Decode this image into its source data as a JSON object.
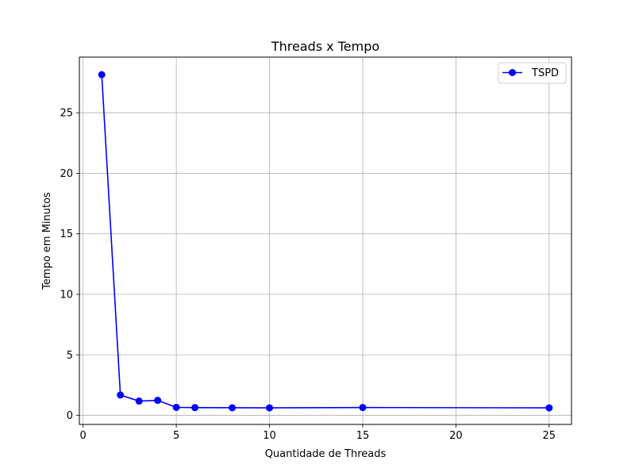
{
  "chart_data": {
    "type": "line",
    "title": "Threads x Tempo",
    "xlabel": "Quantidade de Threads",
    "ylabel": "Tempo em Minutos",
    "xlim": [
      -0.2,
      26.2
    ],
    "ylim": [
      -0.75,
      29.6
    ],
    "xticks": [
      0,
      5,
      10,
      15,
      20,
      25
    ],
    "yticks": [
      0,
      5,
      10,
      15,
      20,
      25
    ],
    "grid": true,
    "legend_position": "top-right",
    "series": [
      {
        "name": "TSPD",
        "color": "#0000ff",
        "marker": "circle",
        "x": [
          1,
          2,
          3,
          4,
          5,
          6,
          8,
          10,
          15,
          25
        ],
        "y": [
          28.15,
          1.68,
          1.18,
          1.24,
          0.66,
          0.64,
          0.63,
          0.62,
          0.65,
          0.62
        ]
      }
    ]
  }
}
